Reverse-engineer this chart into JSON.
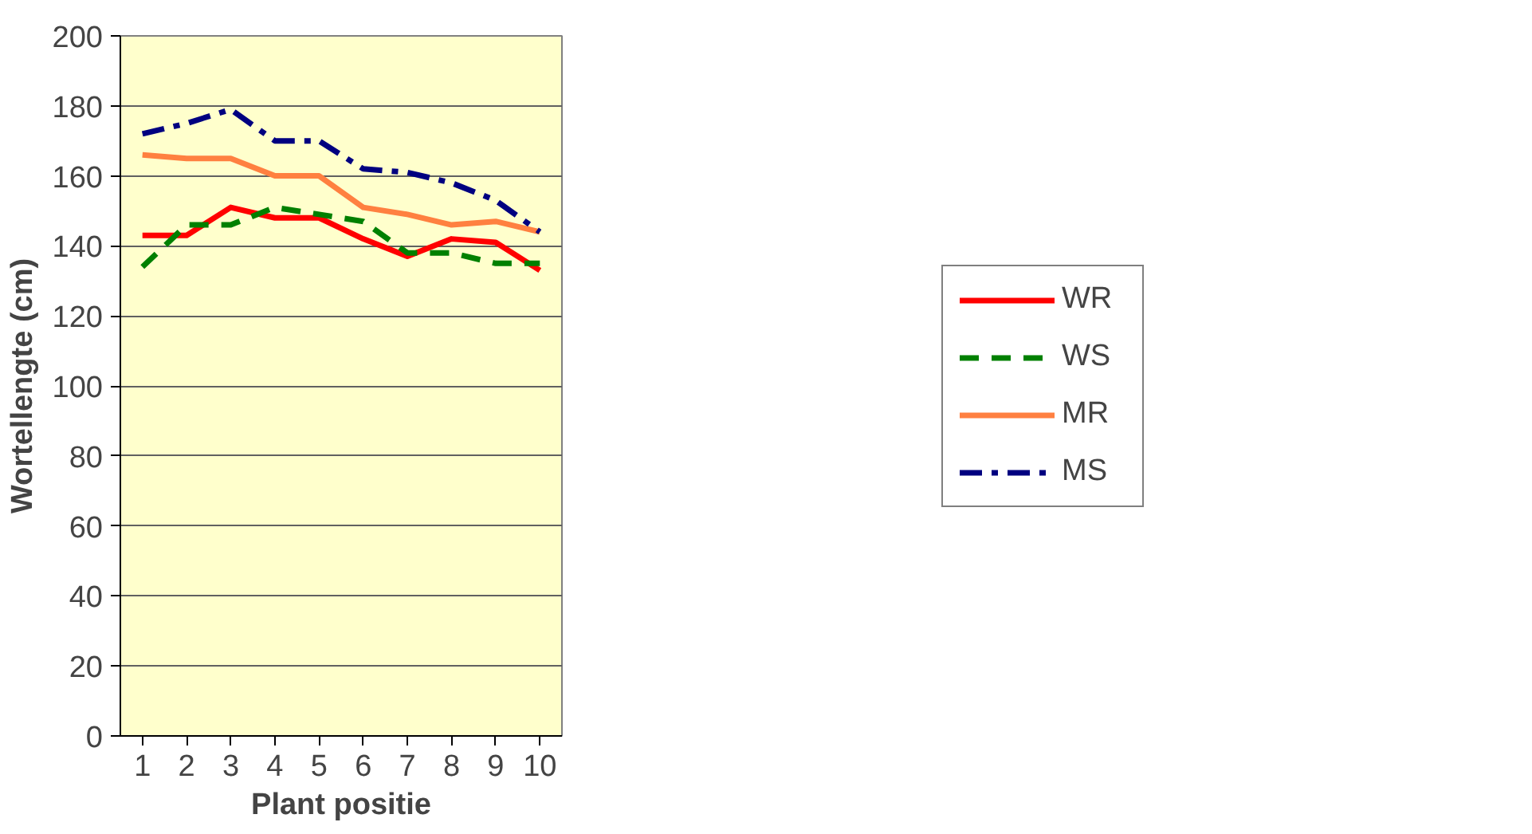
{
  "chart_data": {
    "type": "line",
    "xlabel": "Plant positie",
    "ylabel": "Wortellengte (cm)",
    "categories": [
      "1",
      "2",
      "3",
      "4",
      "5",
      "6",
      "7",
      "8",
      "9",
      "10"
    ],
    "ylim": [
      0,
      200
    ],
    "yticks": [
      0,
      20,
      40,
      60,
      80,
      100,
      120,
      140,
      160,
      180,
      200
    ],
    "grid": "y",
    "legend": "right",
    "series": [
      {
        "name": "WR",
        "color": "#ff0000",
        "line_style": "solid",
        "values": [
          143,
          143,
          151,
          148,
          148,
          142,
          137,
          142,
          141,
          133
        ]
      },
      {
        "name": "WS",
        "color": "#008000",
        "line_style": "dashed",
        "values": [
          134,
          146,
          146,
          151,
          149,
          147,
          138,
          138,
          135,
          135
        ]
      },
      {
        "name": "MR",
        "color": "#ff8040",
        "line_style": "solid",
        "values": [
          166,
          165,
          165,
          160,
          160,
          151,
          149,
          146,
          147,
          144
        ]
      },
      {
        "name": "MS",
        "color": "#000080",
        "line_style": "dashdot",
        "values": [
          172,
          175,
          179,
          170,
          170,
          162,
          161,
          158,
          153,
          144
        ]
      }
    ]
  }
}
